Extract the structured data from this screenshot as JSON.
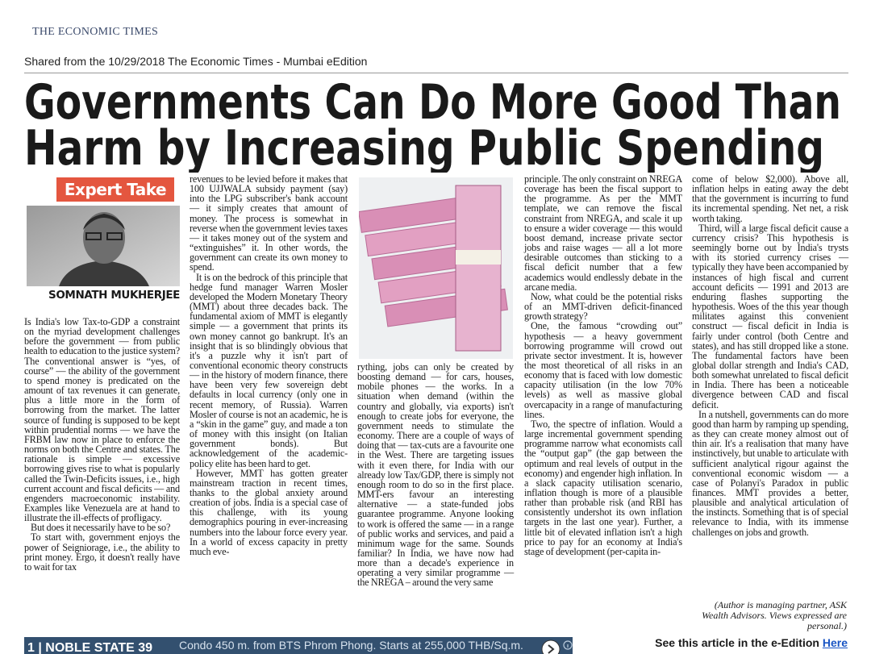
{
  "header": {
    "masthead": "THE ECONOMIC TIMES",
    "shared_line": "Shared from the 10/29/2018 The Economic Times - Mumbai eEdition"
  },
  "article": {
    "headline": [
      "Governments Can Do More Good Than",
      "Harm by Increasing Public Spending"
    ],
    "tag": "Expert Take",
    "author": "SOMNATH MUKHERJEE",
    "columns": [
      [
        "Is India's low Tax-to-GDP a constraint on the myriad development challenges before the government — from public health to education to the justice system? The conventional answer is “yes, of course” — the ability of the government to spend money is predicated on the amount of tax revenues it can generate, plus a little more in the form of borrowing from the market. The latter source of funding is supposed to be kept within prudential norms — we have the FRBM law now in place to enforce the norms on both the Centre and states. The rationale is simple — excessive borrowing gives rise to what is popularly called the Twin-Deficits issues, i.e., high current account and fiscal deficits — and engenders macroeconomic instability. Examples like Venezuela are at hand to illustrate the ill-effects of profligacy.",
        "But does it necessarily have to be so?",
        "To start with, government enjoys the power of Seigniorage, i.e., the ability to print money. Ergo, it doesn't really have to wait for tax"
      ],
      [
        "revenues to be levied before it makes that 100 UJJWALA subsidy payment (say) into the LPG subscriber's bank account — it simply creates that amount of money. The process is somewhat in reverse when the government levies taxes — it takes money out of the system and “extinguishes” it. In other words, the government can create its own money to spend.",
        "It is on the bedrock of this principle that hedge fund manager Warren Mosler developed the Modern Monetary Theory (MMT) about three decades back. The fundamental axiom of MMT is elegantly simple — a government that prints its own money cannot go bankrupt. It's an insight that is so blindingly obvious that it's a puzzle why it isn't part of conventional economic theory constructs — in the history of modern finance, there have been very few sovereign debt defaults in local currency (only one in recent memory, of Russia). Warren Mosler of course is not an academic, he is a “skin in the game” guy, and made a ton of money with this insight (on Italian government bonds). But acknowledgement of the academic-policy elite has been hard to get.",
        "However, MMT has gotten greater mainstream traction in recent times, thanks to the global anxiety around creation of jobs. India is a special case of this challenge, with its young demographics pouring in ever-increasing numbers into the labour force every year. In a world of excess capacity in pretty much eve-"
      ],
      [
        "rything, jobs can only be created by boosting demand — for cars, houses, mobile phones — the works. In a situation when demand (within the country and globally, via exports) isn't enough to create jobs for everyone, the government needs to stimulate the economy. There are a couple of ways of doing that — tax-cuts are a favourite one in the West. There are targeting issues with it even there, for India with our already low Tax/GDP, there is simply not enough room to do so in the first place. MMT-ers favour an interesting alternative — a state-funded jobs guarantee programme. Anyone looking to work is offered the same — in a range of public works and services, and paid a minimum wage for the same. Sounds familiar? In India, we have now had more than a decade's experience in operating a very similar programme — the NREGA – around the very same"
      ],
      [
        "principle. The only constraint on NREGA coverage has been the fiscal support to the programme. As per the MMT template, we can remove the fiscal constraint from NREGA, and scale it up to ensure a wider coverage — this would boost demand, increase private sector jobs and raise wages — all a lot more desirable outcomes than sticking to a fiscal deficit number that a few academics would endlessly debate in the arcane media.",
        "Now, what could be the potential risks of an MMT-driven deficit-financed growth strategy?",
        "One, the famous “crowding out” hypothesis — a heavy government borrowing programme will crowd out private sector investment. It is, however the most theoretical of all risks in an economy that is faced with low domestic capacity utilisation (in the low 70% levels) as well as massive global overcapacity in a range of manufacturing lines.",
        "Two, the spectre of inflation. Would a large incremental government spending programme narrow what economists call the “output gap” (the gap between the optimum and real levels of output in the economy) and engender high inflation. In a slack capacity utilisation scenario, inflation though is more of a plausible rather than probable risk (and RBI has consistently undershot its own inflation targets in the last one year). Further, a little bit of elevated inflation isn't a high price to pay for an economy at India's stage of development (per-capita in-"
      ],
      [
        "come of below $2,000). Above all, inflation helps in eating away the debt that the government is incurring to fund its incremental spending. Net net, a risk worth taking.",
        "Third, will a large fiscal deficit cause a currency crisis? This hypothesis is seemingly borne out by India's trysts with its storied currency crises — typically they have been accompanied by instances of high fiscal and current account deficits — 1991 and 2013 are enduring flashes supporting the hypothesis. Woes of the this year though militates against this convenient construct — fiscal deficit in India is fairly under control (both Centre and states), and has still dropped like a stone. The fundamental factors have been global dollar strength and India's CAD, both somewhat unrelated to fiscal deficit in India. There has been a noticeable divergence between CAD and fiscal deficit.",
        "In a nutshell, governments can do more good than harm by ramping up spending, as they can create money almost out of thin air. It's a realisation that many have instinctively, but unable to articulate with sufficient analytical rigour against the conventional economic wisdom — a case of Polanyi's Paradox in public finances. MMT provides a better, plausible and analytical articulation of the instincts. Something that is of special relevance to India, with its immense challenges on jobs and growth."
      ]
    ],
    "byline": "(Author is managing partner, ASK Wealth Advisors. Views expressed are personal.)"
  },
  "footer": {
    "ad_title": "1 | NOBLE STATE 39",
    "ad_text": "Condo 450 m. from BTS Phrom Phong. Starts at 255,000 THB/Sq.m.",
    "cta": "See this article in the e-Edition",
    "cta_link": "Here"
  }
}
